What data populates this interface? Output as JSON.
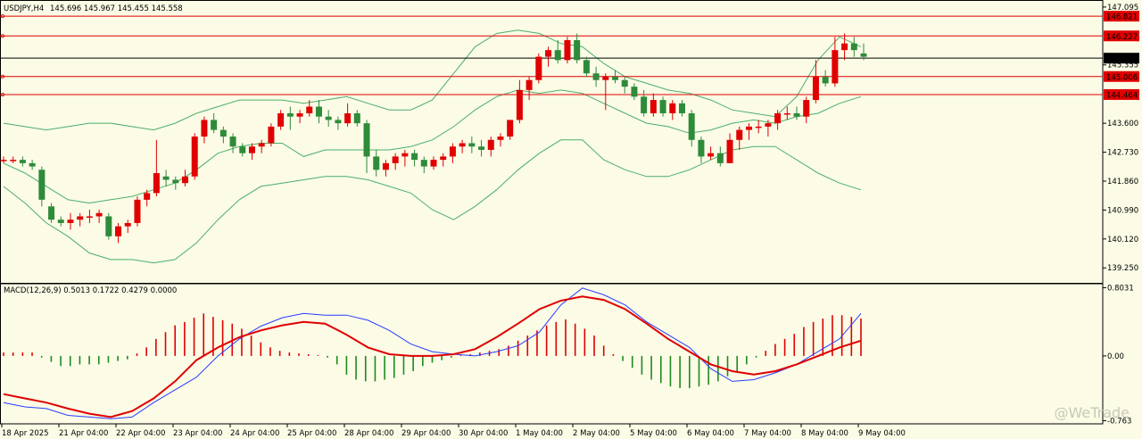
{
  "header": {
    "title": "USDJPY,H4",
    "ohlc": "145.696 145.967 145.455 145.558"
  },
  "macd": {
    "title": "MACD(12,26,9) 0.5013 0.1722 0.4279 0.0000"
  },
  "watermark": "@WeTrade",
  "colors": {
    "background": "#fbfbe6",
    "bull": "#e00000",
    "bear": "#2e8b3a",
    "bollinger": "#4caf6a",
    "hline": "#e00000",
    "macd_line": "#2a3cff",
    "signal_line": "#e00000",
    "hist_pos": "#e00000",
    "hist_neg": "#1f8a1f"
  },
  "chart_data": [
    {
      "type": "candlestick",
      "title": "USDJPY,H4",
      "ylim": [
        138.8,
        147.2
      ],
      "y_ticks": [
        "147.095",
        "145.355",
        "143.600",
        "142.730",
        "141.860",
        "140.990",
        "140.120",
        "139.250"
      ],
      "x_ticks": [
        "18 Apr 2025",
        "21 Apr 04:00",
        "22 Apr 04:00",
        "23 Apr 04:00",
        "24 Apr 04:00",
        "25 Apr 04:00",
        "28 Apr 04:00",
        "29 Apr 04:00",
        "30 Apr 04:00",
        "1 May 04:00",
        "2 May 04:00",
        "5 May 04:00",
        "6 May 04:00",
        "7 May 04:00",
        "8 May 04:00",
        "9 May 04:00"
      ],
      "horizontal_levels": [
        {
          "value": 146.821,
          "label": "146.821",
          "color": "red"
        },
        {
          "value": 146.227,
          "label": "146.227",
          "color": "red"
        },
        {
          "value": 145.558,
          "label": "145.558",
          "color": "black"
        },
        {
          "value": 145.006,
          "label": "145.006",
          "color": "red"
        },
        {
          "value": 144.464,
          "label": "144.464",
          "color": "red"
        }
      ],
      "candles": [
        [
          142.5,
          142.6,
          142.4,
          142.5
        ],
        [
          142.5,
          142.6,
          142.4,
          142.5
        ],
        [
          142.5,
          142.6,
          142.3,
          142.4
        ],
        [
          142.4,
          142.5,
          142.2,
          142.3
        ],
        [
          142.2,
          142.3,
          141.1,
          141.3
        ],
        [
          141.1,
          141.2,
          140.6,
          140.7
        ],
        [
          140.7,
          140.8,
          140.5,
          140.6
        ],
        [
          140.6,
          140.9,
          140.4,
          140.7
        ],
        [
          140.7,
          140.9,
          140.5,
          140.8
        ],
        [
          140.8,
          141.0,
          140.6,
          140.8
        ],
        [
          140.8,
          141.0,
          140.6,
          140.9
        ],
        [
          140.8,
          140.9,
          140.1,
          140.2
        ],
        [
          140.2,
          140.6,
          140.0,
          140.5
        ],
        [
          140.5,
          140.7,
          140.3,
          140.6
        ],
        [
          140.6,
          141.4,
          140.5,
          141.3
        ],
        [
          141.3,
          141.6,
          141.1,
          141.5
        ],
        [
          141.5,
          143.1,
          141.4,
          142.1
        ],
        [
          142.0,
          142.2,
          141.7,
          141.9
        ],
        [
          141.9,
          142.0,
          141.6,
          141.8
        ],
        [
          141.8,
          142.2,
          141.7,
          142.0
        ],
        [
          142.0,
          143.3,
          141.9,
          143.2
        ],
        [
          143.2,
          143.8,
          143.0,
          143.7
        ],
        [
          143.7,
          143.9,
          143.3,
          143.4
        ],
        [
          143.4,
          143.5,
          143.0,
          143.2
        ],
        [
          143.2,
          143.3,
          142.7,
          142.9
        ],
        [
          142.9,
          143.0,
          142.6,
          142.7
        ],
        [
          142.7,
          143.0,
          142.5,
          142.9
        ],
        [
          142.9,
          143.1,
          142.7,
          143.0
        ],
        [
          143.0,
          143.6,
          142.9,
          143.5
        ],
        [
          143.5,
          144.0,
          143.4,
          143.9
        ],
        [
          143.9,
          144.1,
          143.4,
          143.8
        ],
        [
          143.8,
          144.0,
          143.6,
          143.9
        ],
        [
          143.9,
          144.3,
          143.8,
          144.1
        ],
        [
          144.1,
          144.3,
          143.6,
          143.8
        ],
        [
          143.8,
          144.0,
          143.5,
          143.7
        ],
        [
          143.7,
          143.8,
          143.4,
          143.6
        ],
        [
          143.6,
          144.2,
          143.5,
          143.9
        ],
        [
          143.9,
          144.0,
          143.5,
          143.6
        ],
        [
          143.6,
          143.7,
          142.1,
          142.6
        ],
        [
          142.6,
          142.8,
          142.0,
          142.2
        ],
        [
          142.2,
          142.5,
          142.0,
          142.4
        ],
        [
          142.4,
          142.7,
          142.2,
          142.6
        ],
        [
          142.6,
          142.8,
          142.3,
          142.7
        ],
        [
          142.7,
          142.8,
          142.3,
          142.5
        ],
        [
          142.5,
          142.6,
          142.1,
          142.3
        ],
        [
          142.3,
          142.6,
          142.2,
          142.5
        ],
        [
          142.5,
          142.7,
          142.3,
          142.6
        ],
        [
          142.6,
          143.0,
          142.4,
          142.9
        ],
        [
          142.9,
          143.1,
          142.7,
          143.0
        ],
        [
          143.0,
          143.2,
          142.7,
          142.9
        ],
        [
          142.9,
          143.1,
          142.6,
          142.8
        ],
        [
          142.8,
          143.2,
          142.6,
          143.1
        ],
        [
          143.1,
          143.3,
          142.9,
          143.2
        ],
        [
          143.2,
          143.7,
          143.1,
          143.7
        ],
        [
          143.7,
          144.9,
          143.6,
          144.6
        ],
        [
          144.6,
          145.0,
          144.3,
          144.9
        ],
        [
          144.9,
          145.7,
          144.8,
          145.6
        ],
        [
          145.6,
          145.9,
          145.3,
          145.8
        ],
        [
          145.8,
          146.1,
          145.4,
          145.5
        ],
        [
          145.5,
          146.2,
          145.4,
          146.1
        ],
        [
          146.1,
          146.3,
          145.4,
          145.5
        ],
        [
          145.5,
          145.6,
          145.0,
          145.1
        ],
        [
          145.1,
          145.3,
          144.7,
          144.9
        ],
        [
          144.9,
          145.1,
          144.0,
          145.0
        ],
        [
          145.0,
          145.2,
          144.8,
          144.9
        ],
        [
          144.9,
          145.0,
          144.5,
          144.7
        ],
        [
          144.7,
          144.8,
          144.3,
          144.4
        ],
        [
          144.4,
          144.6,
          143.8,
          143.9
        ],
        [
          143.9,
          144.5,
          143.8,
          144.3
        ],
        [
          144.3,
          144.4,
          143.8,
          143.9
        ],
        [
          143.9,
          144.3,
          143.7,
          144.2
        ],
        [
          144.2,
          144.3,
          143.8,
          143.9
        ],
        [
          143.9,
          144.0,
          142.9,
          143.1
        ],
        [
          143.1,
          143.2,
          142.4,
          142.6
        ],
        [
          142.6,
          142.9,
          142.5,
          142.7
        ],
        [
          142.7,
          142.9,
          142.3,
          142.4
        ],
        [
          142.4,
          143.3,
          142.4,
          143.1
        ],
        [
          143.1,
          143.5,
          142.8,
          143.4
        ],
        [
          143.4,
          143.6,
          143.1,
          143.5
        ],
        [
          143.5,
          143.7,
          143.3,
          143.5
        ],
        [
          143.5,
          143.7,
          143.2,
          143.6
        ],
        [
          143.6,
          144.0,
          143.4,
          143.9
        ],
        [
          143.9,
          144.1,
          143.7,
          143.9
        ],
        [
          143.9,
          144.1,
          143.7,
          143.8
        ],
        [
          143.8,
          144.4,
          143.6,
          144.3
        ],
        [
          144.3,
          145.5,
          144.2,
          145.0
        ],
        [
          145.0,
          145.2,
          144.7,
          144.8
        ],
        [
          144.8,
          146.2,
          144.7,
          145.8
        ],
        [
          145.8,
          146.3,
          145.5,
          146.0
        ],
        [
          146.0,
          146.2,
          145.6,
          145.8
        ],
        [
          145.7,
          146.0,
          145.5,
          145.6
        ]
      ],
      "bollinger": {
        "upper": [
          143.6,
          143.5,
          143.4,
          143.5,
          143.6,
          143.6,
          143.5,
          143.4,
          143.6,
          143.9,
          144.1,
          144.3,
          144.3,
          144.3,
          144.2,
          144.3,
          144.4,
          144.2,
          144.0,
          144.0,
          144.3,
          145.1,
          145.9,
          146.3,
          146.4,
          146.3,
          146.0,
          145.9,
          145.4,
          145.0,
          144.8,
          144.6,
          144.5,
          144.3,
          144.0,
          143.9,
          143.8,
          144.4,
          145.5,
          146.2,
          145.9
        ],
        "middle": [
          142.4,
          142.1,
          141.7,
          141.3,
          141.2,
          141.3,
          141.4,
          141.6,
          141.8,
          142.2,
          142.7,
          142.9,
          143.0,
          143.0,
          142.6,
          142.8,
          142.8,
          142.8,
          142.8,
          142.9,
          143.1,
          143.5,
          144.0,
          144.4,
          144.6,
          144.5,
          144.6,
          144.5,
          144.2,
          143.9,
          143.6,
          143.5,
          143.3,
          143.4,
          143.6,
          143.7,
          143.6,
          143.8,
          143.9,
          144.2,
          144.4
        ],
        "lower": [
          141.7,
          141.2,
          140.6,
          140.2,
          139.7,
          139.5,
          139.5,
          139.4,
          139.5,
          140.0,
          140.7,
          141.3,
          141.7,
          141.8,
          141.9,
          142.0,
          142.0,
          141.9,
          141.7,
          141.5,
          141.0,
          140.7,
          141.1,
          141.6,
          142.2,
          142.7,
          143.1,
          143.1,
          142.5,
          142.2,
          142.0,
          142.0,
          142.2,
          142.5,
          142.8,
          142.9,
          142.9,
          142.5,
          142.1,
          141.8,
          141.6
        ]
      }
    },
    {
      "type": "bar",
      "title": "MACD(12,26,9) 0.5013 0.1722 0.4279 0.0000",
      "ylim": [
        -0.8,
        0.85
      ],
      "y_ticks": [
        "0.8031",
        "0.00",
        "-0.763"
      ],
      "histogram": [
        0.04,
        0.04,
        0.04,
        0.04,
        -0.02,
        -0.07,
        -0.12,
        -0.12,
        -0.1,
        -0.1,
        -0.1,
        -0.08,
        -0.06,
        -0.04,
        0.03,
        0.1,
        0.2,
        0.28,
        0.36,
        0.4,
        0.45,
        0.5,
        0.46,
        0.42,
        0.38,
        0.32,
        0.24,
        0.16,
        0.1,
        0.06,
        0.04,
        0.03,
        0.02,
        0.01,
        -0.02,
        -0.1,
        -0.22,
        -0.28,
        -0.3,
        -0.3,
        -0.28,
        -0.26,
        -0.22,
        -0.18,
        -0.12,
        -0.08,
        -0.05,
        -0.02,
        0.01,
        0.02,
        0.04,
        0.06,
        0.08,
        0.12,
        0.18,
        0.24,
        0.3,
        0.36,
        0.4,
        0.43,
        0.38,
        0.32,
        0.24,
        0.12,
        0.02,
        -0.06,
        -0.14,
        -0.22,
        -0.28,
        -0.32,
        -0.36,
        -0.38,
        -0.38,
        -0.36,
        -0.34,
        -0.3,
        -0.24,
        -0.18,
        -0.1,
        -0.02,
        0.06,
        0.14,
        0.2,
        0.26,
        0.34,
        0.4,
        0.44,
        0.48,
        0.48,
        0.46,
        0.44
      ],
      "macd_line": [
        -0.55,
        -0.6,
        -0.62,
        -0.7,
        -0.72,
        -0.74,
        -0.72,
        -0.55,
        -0.4,
        -0.25,
        0.0,
        0.2,
        0.35,
        0.45,
        0.5,
        0.48,
        0.48,
        0.42,
        0.3,
        0.14,
        0.05,
        0.02,
        0.0,
        0.05,
        0.12,
        0.28,
        0.6,
        0.8,
        0.72,
        0.6,
        0.4,
        0.25,
        0.1,
        -0.15,
        -0.3,
        -0.28,
        -0.2,
        -0.1,
        0.05,
        0.2,
        0.5
      ],
      "signal_line": [
        -0.45,
        -0.5,
        -0.55,
        -0.62,
        -0.68,
        -0.72,
        -0.65,
        -0.5,
        -0.3,
        -0.05,
        0.1,
        0.22,
        0.3,
        0.36,
        0.4,
        0.38,
        0.25,
        0.1,
        0.02,
        0.0,
        0.0,
        0.02,
        0.08,
        0.22,
        0.38,
        0.55,
        0.65,
        0.7,
        0.66,
        0.55,
        0.38,
        0.2,
        0.05,
        -0.1,
        -0.18,
        -0.22,
        -0.18,
        -0.1,
        0.0,
        0.1,
        0.18
      ]
    }
  ]
}
